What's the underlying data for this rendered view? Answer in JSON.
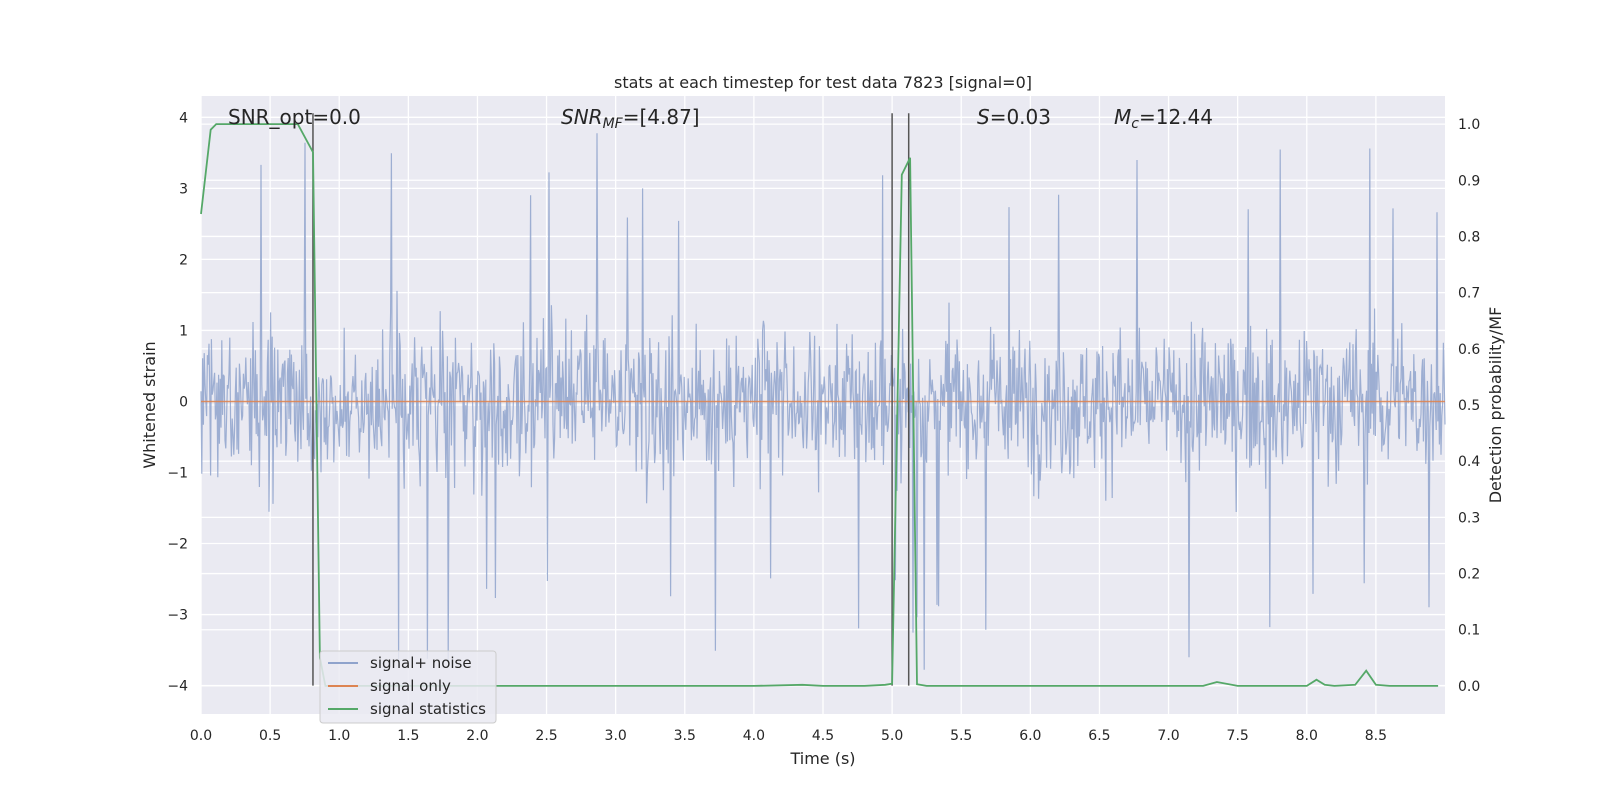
{
  "chart_data": {
    "type": "line",
    "title": "stats at each timestep for test data 7823 [signal=0]",
    "xlabel": "Time (s)",
    "ylabel_left": "Whitened strain",
    "ylabel_right": "Detection probability/MF",
    "xlim": [
      0.0,
      9.0
    ],
    "ylim_left": [
      -4.4,
      4.3
    ],
    "ylim_right": [
      -0.05,
      1.05
    ],
    "x_ticks": [
      "0.0",
      "0.5",
      "1.0",
      "1.5",
      "2.0",
      "2.5",
      "3.0",
      "3.5",
      "4.0",
      "4.5",
      "5.0",
      "5.5",
      "6.0",
      "6.5",
      "7.0",
      "7.5",
      "8.0",
      "8.5"
    ],
    "y_ticks_left": [
      "4",
      "3",
      "2",
      "1",
      "0",
      "−1",
      "−2",
      "−3",
      "−4"
    ],
    "y_ticks_right": [
      "1.0",
      "0.9",
      "0.8",
      "0.7",
      "0.6",
      "0.5",
      "0.4",
      "0.3",
      "0.2",
      "0.1",
      "0.0"
    ],
    "grid": true,
    "legend_position": "lower-left",
    "annotations": {
      "snr_opt": "SNR_opt=0.0",
      "snr_mf_prefix": "SNR",
      "snr_mf_sub": "MF",
      "snr_mf_value": "=[4.87]",
      "s_symbol": "S",
      "s_value": "=0.03",
      "mc_symbol": "M",
      "mc_sub": "c",
      "mc_value": "=12.44"
    },
    "vertical_markers_x": [
      0.81,
      5.0,
      5.12
    ],
    "series": [
      {
        "name": "signal+ noise",
        "color": "#8fa3cc",
        "kind": "noise",
        "typical_amplitude": 1.6,
        "peak_amplitude": 3.8
      },
      {
        "name": "signal only",
        "color": "#dd8452",
        "kind": "flat",
        "y": 0.0
      },
      {
        "name": "signal statistics",
        "color": "#55a868",
        "axis": "right",
        "x": [
          0.0,
          0.07,
          0.11,
          0.2,
          0.3,
          0.4,
          0.5,
          0.6,
          0.7,
          0.81,
          0.86,
          0.9,
          1.0,
          1.5,
          2.0,
          2.5,
          3.0,
          3.5,
          4.0,
          4.35,
          4.5,
          4.8,
          4.95,
          5.0,
          5.07,
          5.13,
          5.18,
          5.25,
          5.5,
          6.0,
          6.5,
          7.0,
          7.25,
          7.35,
          7.5,
          7.8,
          8.0,
          8.07,
          8.13,
          8.2,
          8.35,
          8.43,
          8.5,
          8.6,
          8.8,
          8.95
        ],
        "y": [
          0.84,
          0.99,
          1.0,
          1.0,
          1.0,
          1.0,
          1.0,
          1.0,
          1.0,
          0.95,
          0.05,
          0.0,
          0.0,
          0.0,
          0.0,
          0.0,
          0.0,
          0.0,
          0.0,
          0.002,
          0.0,
          0.0,
          0.002,
          0.004,
          0.91,
          0.94,
          0.003,
          0.0,
          0.0,
          0.0,
          0.0,
          0.0,
          0.0,
          0.007,
          0.0,
          0.0,
          0.0,
          0.011,
          0.002,
          0.0,
          0.002,
          0.027,
          0.002,
          0.0,
          0.0,
          0.0
        ]
      }
    ]
  }
}
